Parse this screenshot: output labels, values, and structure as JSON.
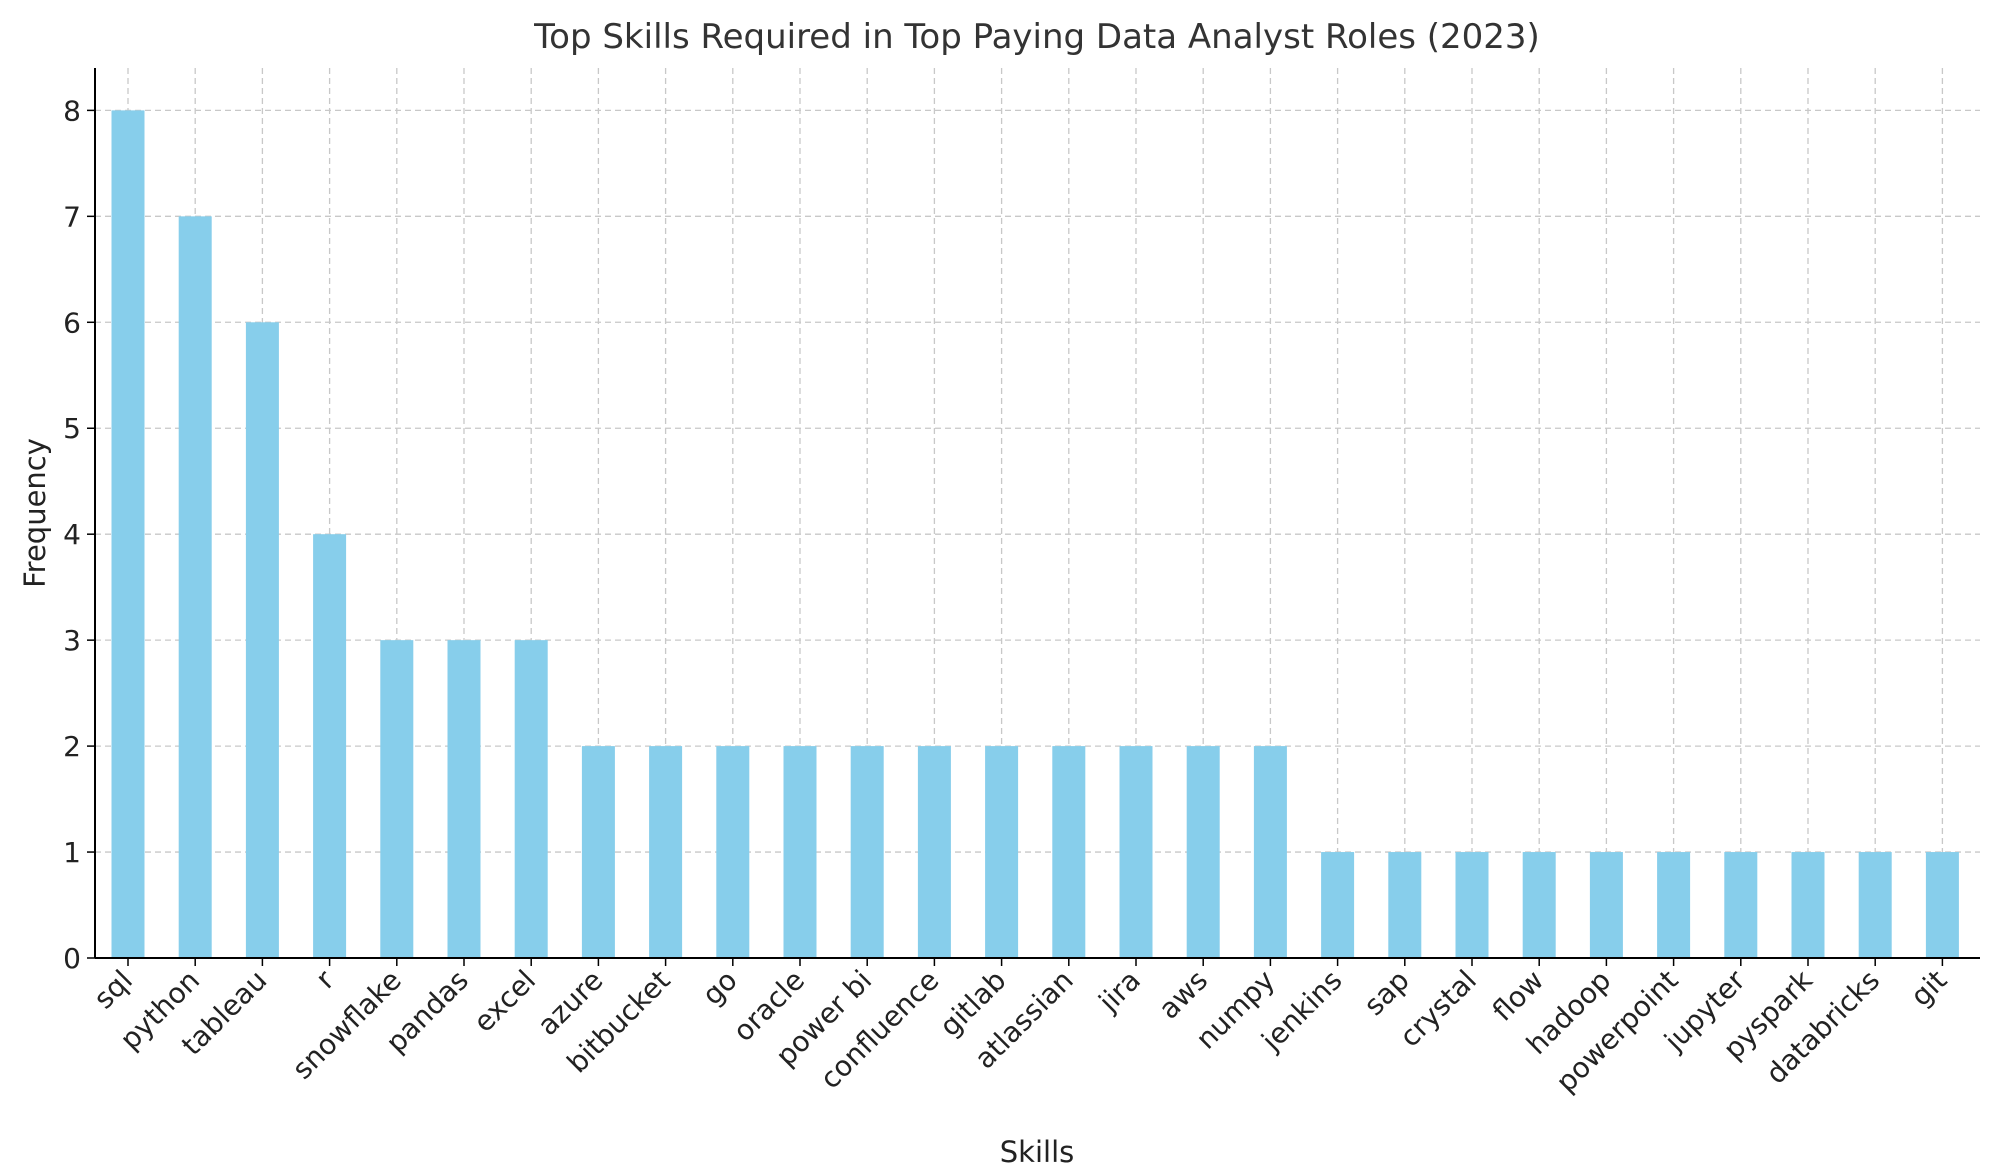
{
  "chart_data": {
    "type": "bar",
    "title": "Top Skills Required in Top Paying Data Analyst Roles (2023)",
    "xlabel": "Skills",
    "ylabel": "Frequency",
    "categories": [
      "sql",
      "python",
      "tableau",
      "r",
      "snowflake",
      "pandas",
      "excel",
      "azure",
      "bitbucket",
      "go",
      "oracle",
      "power bi",
      "confluence",
      "gitlab",
      "atlassian",
      "jira",
      "aws",
      "numpy",
      "jenkins",
      "sap",
      "crystal",
      "flow",
      "hadoop",
      "powerpoint",
      "jupyter",
      "pyspark",
      "databricks",
      "git"
    ],
    "values": [
      8,
      7,
      6,
      4,
      3,
      3,
      3,
      2,
      2,
      2,
      2,
      2,
      2,
      2,
      2,
      2,
      2,
      2,
      1,
      1,
      1,
      1,
      1,
      1,
      1,
      1,
      1,
      1
    ],
    "yticks": [
      "0",
      "1",
      "2",
      "3",
      "4",
      "5",
      "6",
      "7",
      "8"
    ],
    "ylim": [
      0,
      8.4
    ],
    "grid": true,
    "bar_color": "#87CEEB"
  }
}
